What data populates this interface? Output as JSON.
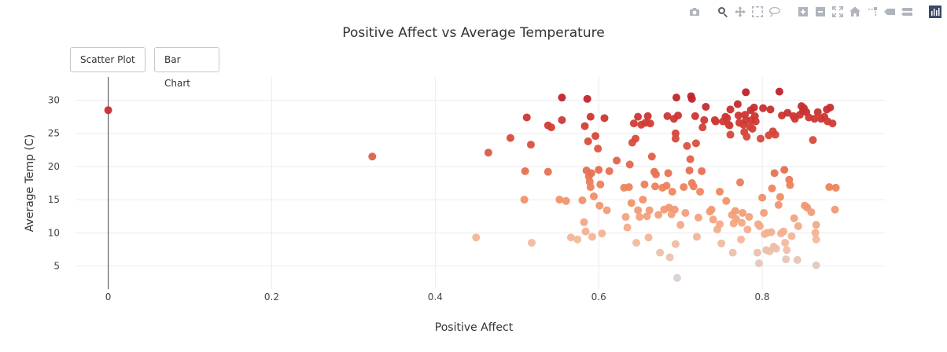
{
  "modebar": {
    "icons": [
      "camera-icon",
      "zoom-icon",
      "pan-icon",
      "box-select-icon",
      "lasso-icon",
      "zoom-in-icon",
      "zoom-out-icon",
      "autoscale-icon",
      "home-icon",
      "spike-lines-icon",
      "hover-closest-icon",
      "hover-compare-icon",
      "plotly-logo-icon"
    ]
  },
  "buttons": {
    "scatter": "Scatter Plot",
    "bar": "Bar Chart"
  },
  "chart_data": {
    "type": "scatter",
    "title": "Positive Affect vs Average Temperature",
    "xlabel": "Positive Affect",
    "ylabel": "Average Temp (C)",
    "xlim": [
      -0.04,
      0.95
    ],
    "ylim": [
      1.5,
      33.5
    ],
    "xticks": [
      0,
      0.2,
      0.4,
      0.6,
      0.8
    ],
    "xtick_labels": [
      "0",
      "0.2",
      "0.4",
      "0.6",
      "0.8"
    ],
    "yticks": [
      5,
      10,
      15,
      20,
      25,
      30
    ],
    "ytick_labels": [
      "5",
      "10",
      "15",
      "20",
      "25",
      "30"
    ],
    "grid": true,
    "color_scale": "reds by temperature",
    "colors": {
      "low": "#d9d2d0",
      "mid_low": "#f4b89a",
      "mid": "#f08a60",
      "mid_high": "#d94b3b",
      "high": "#c0202a"
    },
    "points": [
      [
        0,
        28.5
      ],
      [
        0.323,
        21.5
      ],
      [
        0.45,
        9.3
      ],
      [
        0.465,
        22.1
      ],
      [
        0.492,
        24.3
      ],
      [
        0.509,
        15.0
      ],
      [
        0.51,
        19.3
      ],
      [
        0.512,
        27.4
      ],
      [
        0.517,
        23.3
      ],
      [
        0.518,
        8.5
      ],
      [
        0.538,
        19.2
      ],
      [
        0.538,
        26.2
      ],
      [
        0.542,
        25.9
      ],
      [
        0.552,
        15.0
      ],
      [
        0.555,
        27.0
      ],
      [
        0.555,
        30.4
      ],
      [
        0.56,
        14.8
      ],
      [
        0.566,
        9.3
      ],
      [
        0.574,
        9.0
      ],
      [
        0.58,
        14.9
      ],
      [
        0.582,
        11.6
      ],
      [
        0.583,
        26.1
      ],
      [
        0.584,
        10.2
      ],
      [
        0.585,
        19.4
      ],
      [
        0.586,
        30.2
      ],
      [
        0.587,
        23.8
      ],
      [
        0.588,
        18.5
      ],
      [
        0.589,
        17.7
      ],
      [
        0.59,
        16.9
      ],
      [
        0.59,
        27.5
      ],
      [
        0.591,
        19.0
      ],
      [
        0.592,
        9.4
      ],
      [
        0.594,
        15.5
      ],
      [
        0.596,
        24.6
      ],
      [
        0.599,
        22.7
      ],
      [
        0.6,
        19.5
      ],
      [
        0.601,
        14.1
      ],
      [
        0.602,
        17.3
      ],
      [
        0.604,
        9.9
      ],
      [
        0.607,
        27.3
      ],
      [
        0.61,
        13.4
      ],
      [
        0.613,
        19.3
      ],
      [
        0.622,
        20.9
      ],
      [
        0.631,
        16.8
      ],
      [
        0.633,
        12.4
      ],
      [
        0.635,
        10.8
      ],
      [
        0.637,
        16.9
      ],
      [
        0.638,
        20.3
      ],
      [
        0.64,
        14.5
      ],
      [
        0.641,
        23.6
      ],
      [
        0.643,
        26.5
      ],
      [
        0.645,
        24.2
      ],
      [
        0.646,
        8.5
      ],
      [
        0.648,
        27.5
      ],
      [
        0.648,
        13.4
      ],
      [
        0.65,
        12.4
      ],
      [
        0.652,
        26.3
      ],
      [
        0.654,
        15.0
      ],
      [
        0.656,
        17.3
      ],
      [
        0.657,
        26.6
      ],
      [
        0.659,
        12.5
      ],
      [
        0.66,
        27.6
      ],
      [
        0.661,
        9.3
      ],
      [
        0.662,
        13.4
      ],
      [
        0.663,
        26.5
      ],
      [
        0.665,
        21.5
      ],
      [
        0.668,
        19.2
      ],
      [
        0.669,
        17.0
      ],
      [
        0.67,
        18.8
      ],
      [
        0.673,
        12.7
      ],
      [
        0.675,
        7.0
      ],
      [
        0.678,
        16.8
      ],
      [
        0.68,
        13.5
      ],
      [
        0.683,
        17.1
      ],
      [
        0.684,
        27.6
      ],
      [
        0.685,
        19.0
      ],
      [
        0.686,
        13.8
      ],
      [
        0.687,
        6.3
      ],
      [
        0.689,
        12.8
      ],
      [
        0.69,
        16.2
      ],
      [
        0.692,
        27.2
      ],
      [
        0.693,
        13.5
      ],
      [
        0.694,
        25.0
      ],
      [
        0.694,
        24.2
      ],
      [
        0.694,
        8.3
      ],
      [
        0.695,
        30.4
      ],
      [
        0.696,
        3.2
      ],
      [
        0.697,
        27.7
      ],
      [
        0.7,
        11.2
      ],
      [
        0.704,
        16.9
      ],
      [
        0.706,
        13.0
      ],
      [
        0.708,
        23.1
      ],
      [
        0.711,
        19.4
      ],
      [
        0.712,
        21.1
      ],
      [
        0.713,
        30.6
      ],
      [
        0.714,
        17.5
      ],
      [
        0.714,
        30.2
      ],
      [
        0.716,
        17.0
      ],
      [
        0.718,
        27.6
      ],
      [
        0.719,
        23.5
      ],
      [
        0.72,
        9.4
      ],
      [
        0.722,
        12.3
      ],
      [
        0.724,
        16.2
      ],
      [
        0.726,
        19.3
      ],
      [
        0.727,
        25.9
      ],
      [
        0.729,
        27.0
      ],
      [
        0.731,
        29.0
      ],
      [
        0.736,
        13.2
      ],
      [
        0.738,
        13.5
      ],
      [
        0.74,
        12.0
      ],
      [
        0.742,
        27.0
      ],
      [
        0.743,
        26.8
      ],
      [
        0.745,
        10.5
      ],
      [
        0.748,
        16.2
      ],
      [
        0.748,
        11.3
      ],
      [
        0.75,
        8.4
      ],
      [
        0.752,
        26.8
      ],
      [
        0.755,
        27.5
      ],
      [
        0.756,
        14.8
      ],
      [
        0.757,
        27.3
      ],
      [
        0.759,
        26.3
      ],
      [
        0.76,
        26.2
      ],
      [
        0.761,
        24.8
      ],
      [
        0.761,
        28.6
      ],
      [
        0.763,
        12.7
      ],
      [
        0.764,
        7.0
      ],
      [
        0.765,
        11.4
      ],
      [
        0.767,
        13.3
      ],
      [
        0.768,
        12.1
      ],
      [
        0.77,
        29.4
      ],
      [
        0.771,
        27.7
      ],
      [
        0.772,
        26.6
      ],
      [
        0.773,
        17.6
      ],
      [
        0.774,
        9.0
      ],
      [
        0.775,
        11.5
      ],
      [
        0.776,
        13.0
      ],
      [
        0.777,
        26.3
      ],
      [
        0.778,
        25.2
      ],
      [
        0.779,
        27.8
      ],
      [
        0.78,
        27.0
      ],
      [
        0.78,
        31.2
      ],
      [
        0.781,
        24.5
      ],
      [
        0.782,
        10.5
      ],
      [
        0.784,
        12.4
      ],
      [
        0.785,
        26.0
      ],
      [
        0.786,
        28.5
      ],
      [
        0.787,
        27.0
      ],
      [
        0.788,
        25.7
      ],
      [
        0.79,
        28.9
      ],
      [
        0.791,
        27.6
      ],
      [
        0.792,
        26.8
      ],
      [
        0.794,
        7.0
      ],
      [
        0.795,
        11.3
      ],
      [
        0.796,
        5.4
      ],
      [
        0.797,
        11.0
      ],
      [
        0.798,
        24.2
      ],
      [
        0.8,
        15.3
      ],
      [
        0.801,
        28.8
      ],
      [
        0.802,
        13.0
      ],
      [
        0.803,
        9.8
      ],
      [
        0.805,
        7.4
      ],
      [
        0.806,
        10.0
      ],
      [
        0.808,
        24.7
      ],
      [
        0.809,
        7.2
      ],
      [
        0.81,
        28.6
      ],
      [
        0.811,
        10.1
      ],
      [
        0.812,
        16.7
      ],
      [
        0.813,
        25.3
      ],
      [
        0.814,
        7.9
      ],
      [
        0.815,
        19.0
      ],
      [
        0.816,
        24.8
      ],
      [
        0.817,
        7.6
      ],
      [
        0.82,
        14.2
      ],
      [
        0.821,
        31.3
      ],
      [
        0.822,
        15.4
      ],
      [
        0.823,
        9.9
      ],
      [
        0.824,
        27.7
      ],
      [
        0.826,
        10.2
      ],
      [
        0.827,
        19.5
      ],
      [
        0.828,
        8.5
      ],
      [
        0.829,
        6.0
      ],
      [
        0.83,
        7.4
      ],
      [
        0.831,
        28.1
      ],
      [
        0.833,
        18.0
      ],
      [
        0.834,
        17.2
      ],
      [
        0.836,
        9.5
      ],
      [
        0.838,
        27.6
      ],
      [
        0.839,
        12.2
      ],
      [
        0.84,
        27.2
      ],
      [
        0.843,
        5.9
      ],
      [
        0.844,
        11.0
      ],
      [
        0.846,
        27.8
      ],
      [
        0.848,
        29.1
      ],
      [
        0.85,
        28.4
      ],
      [
        0.851,
        28.8
      ],
      [
        0.852,
        14.1
      ],
      [
        0.854,
        28.2
      ],
      [
        0.855,
        13.8
      ],
      [
        0.857,
        27.4
      ],
      [
        0.86,
        13.1
      ],
      [
        0.862,
        24.0
      ],
      [
        0.864,
        27.2
      ],
      [
        0.865,
        10.0
      ],
      [
        0.866,
        9.0
      ],
      [
        0.866,
        5.1
      ],
      [
        0.866,
        11.2
      ],
      [
        0.868,
        28.2
      ],
      [
        0.872,
        27.2
      ],
      [
        0.876,
        27.5
      ],
      [
        0.879,
        28.6
      ],
      [
        0.88,
        26.8
      ],
      [
        0.882,
        16.9
      ],
      [
        0.883,
        28.9
      ],
      [
        0.886,
        26.5
      ],
      [
        0.889,
        13.5
      ],
      [
        0.89,
        16.8
      ]
    ]
  }
}
